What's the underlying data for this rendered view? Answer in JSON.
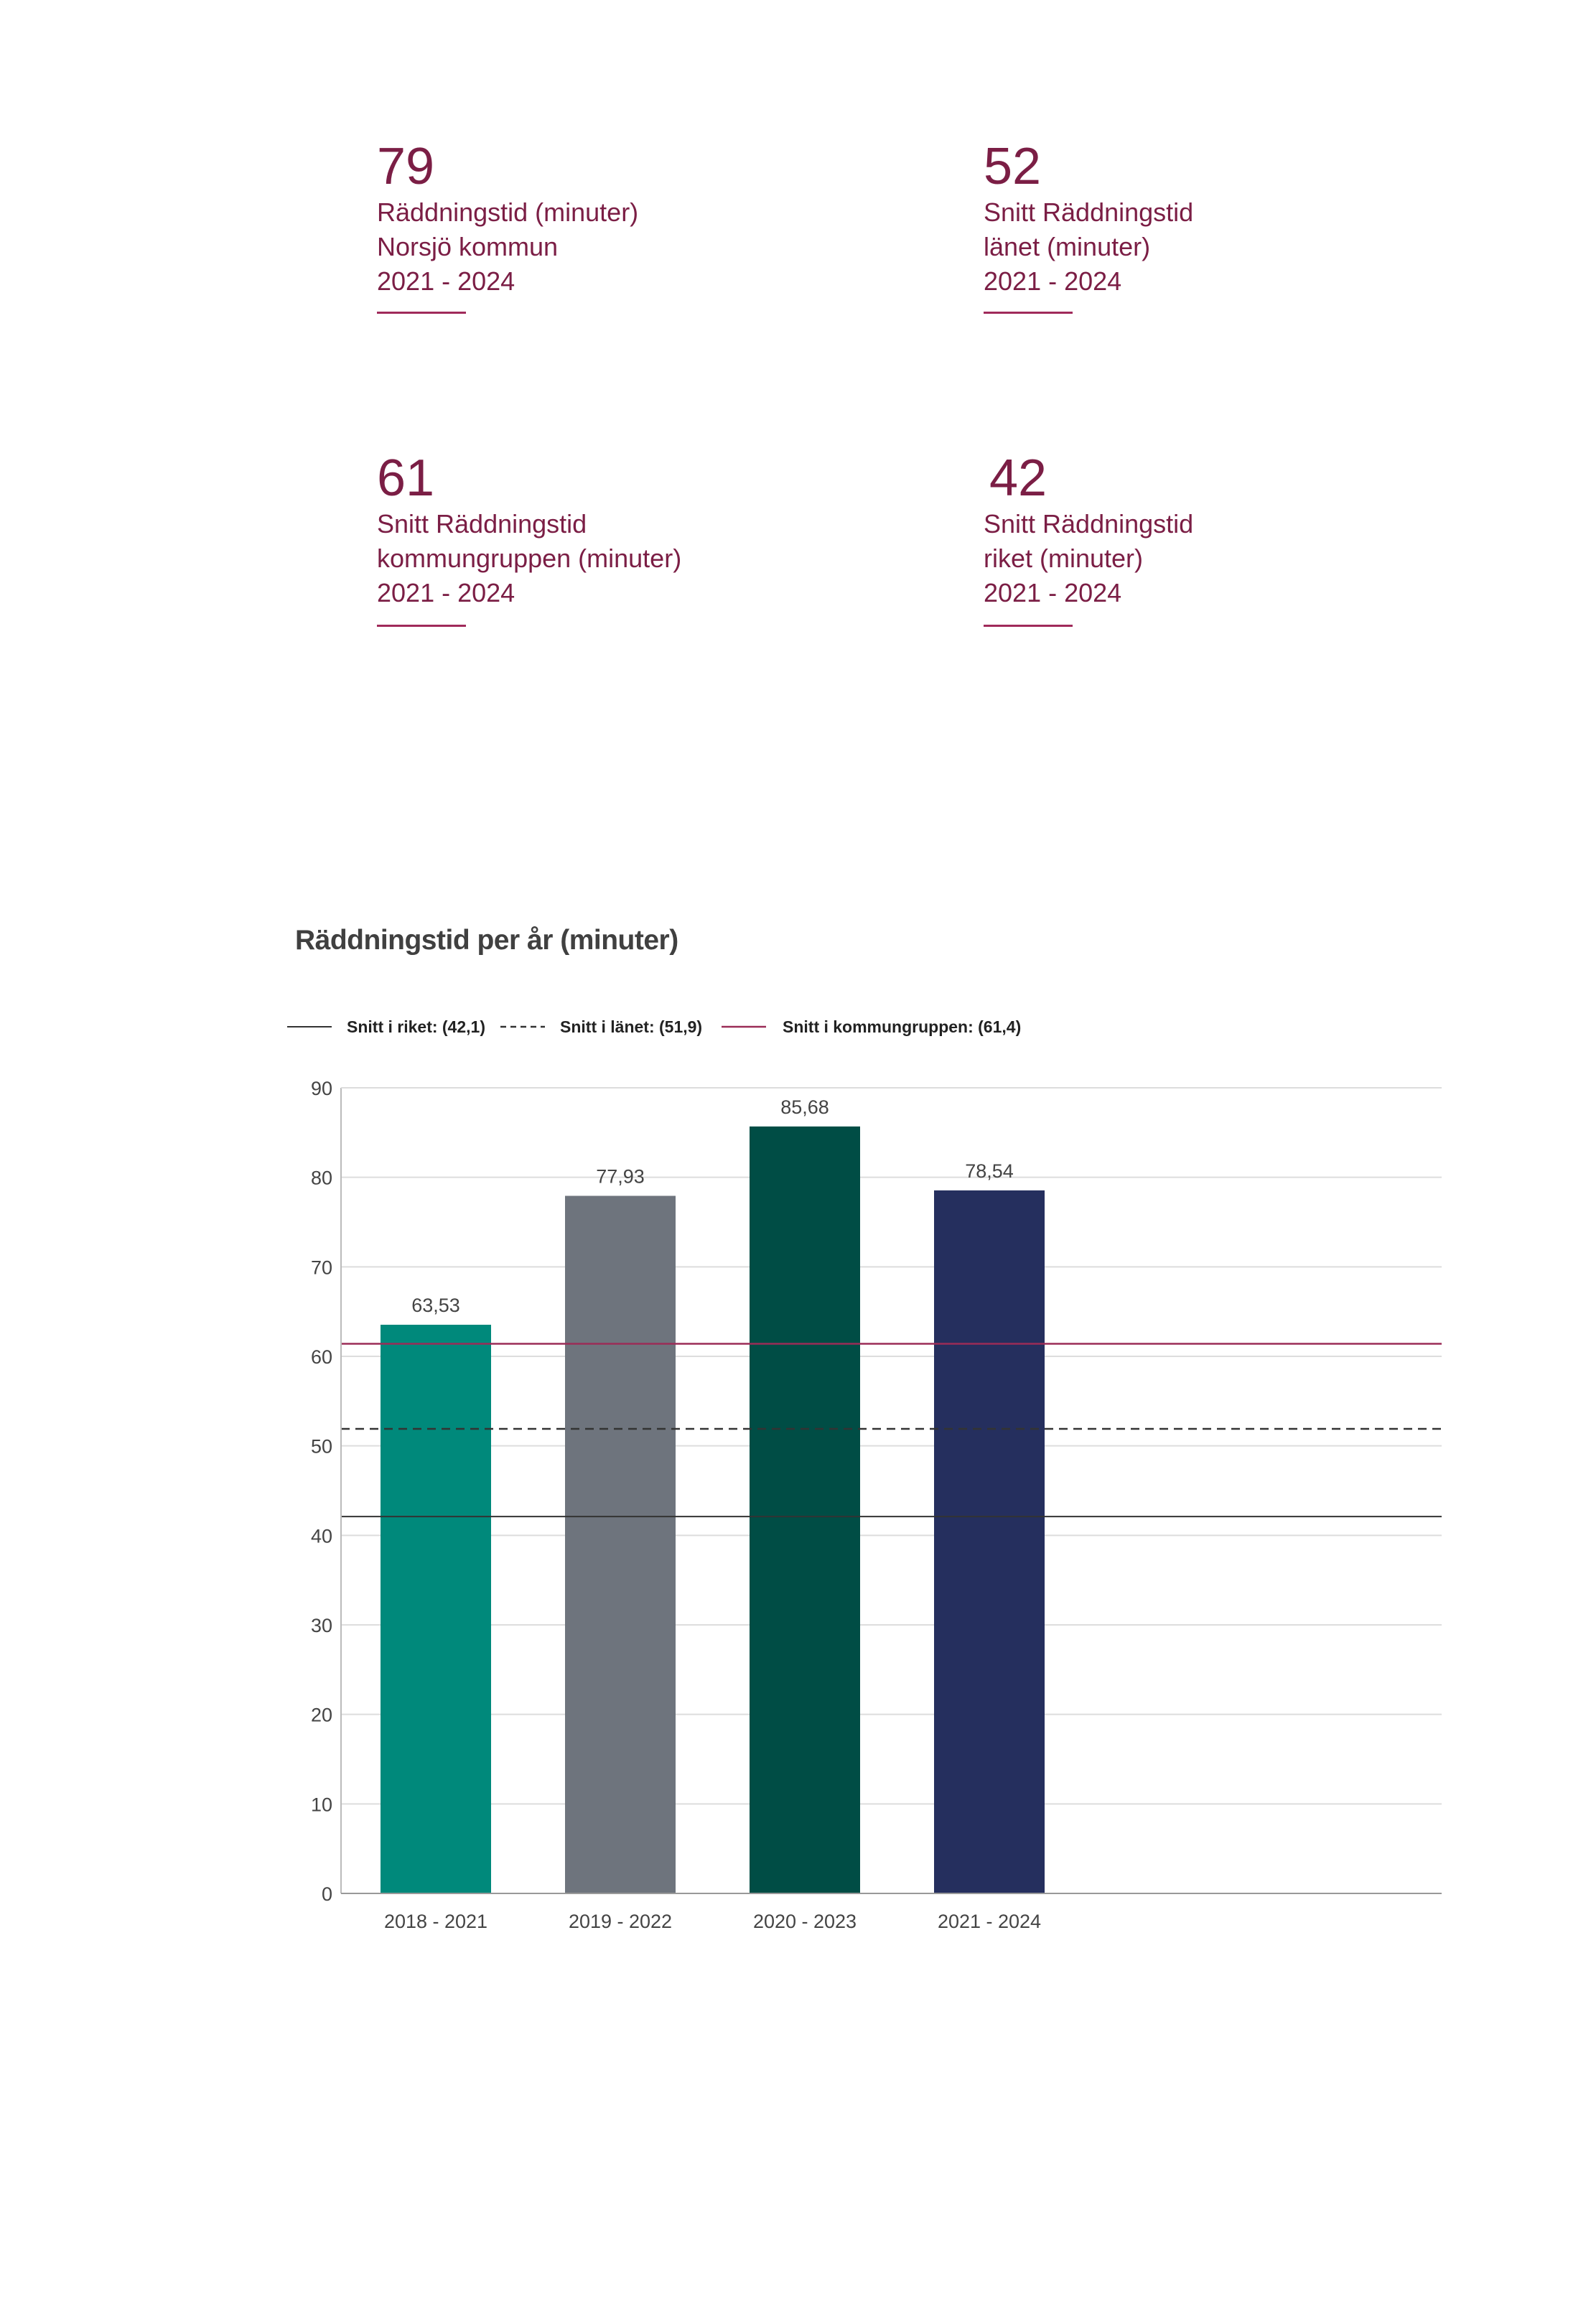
{
  "stats": [
    {
      "value": "79",
      "lines": [
        "Räddningstid (minuter)",
        "Norsjö kommun",
        "2021 - 2024"
      ]
    },
    {
      "value": "52",
      "lines": [
        "Snitt Räddningstid",
        "länet (minuter)",
        "2021 - 2024"
      ]
    },
    {
      "value": "61",
      "lines": [
        "Snitt Räddningstid",
        "kommungruppen (minuter)",
        "2021 - 2024"
      ]
    },
    {
      "value": "42",
      "lines": [
        "Snitt Räddningstid",
        "riket (minuter)",
        "2021 - 2024"
      ]
    }
  ],
  "colors": {
    "accent": "#7b1e45",
    "bars": [
      "#00897b",
      "#6e747d",
      "#004d45",
      "#252f5e"
    ],
    "riket": "#333333",
    "lanet": "#333333",
    "kommungrupp": "#9b2c57",
    "grid": "#dddddd"
  },
  "chart_data": {
    "type": "bar",
    "title": "Räddningstid per år (minuter)",
    "categories": [
      "2018 - 2021",
      "2019 - 2022",
      "2020 - 2023",
      "2021 - 2024"
    ],
    "values": [
      63.53,
      77.93,
      85.68,
      78.54
    ],
    "value_labels": [
      "63,53",
      "77,93",
      "85,68",
      "78,54"
    ],
    "ylim": [
      0,
      90
    ],
    "yticks": [
      "0",
      "10",
      "20",
      "30",
      "40",
      "50",
      "60",
      "70",
      "80",
      "90"
    ],
    "grid": true,
    "legend_position": "top-left",
    "reference_lines": [
      {
        "name": "Snitt i riket: (42,1)",
        "value": 42.1,
        "style": "solid"
      },
      {
        "name": "Snitt i länet: (51,9)",
        "value": 51.9,
        "style": "dashed"
      },
      {
        "name": "Snitt i kommungruppen: (61,4)",
        "value": 61.4,
        "style": "solid-accent"
      }
    ]
  }
}
